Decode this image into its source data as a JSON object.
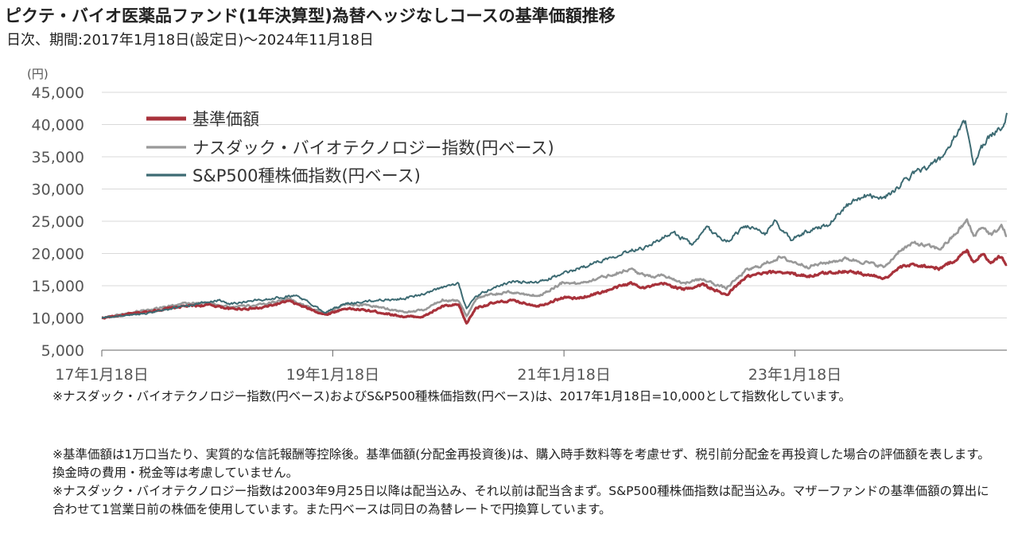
{
  "title": "ピクテ・バイオ医薬品ファンド(1年決算型)為替ヘッジなしコースの基準価額推移",
  "subtitle": "日次、期間:2017年1月18日(設定日)～2024年11月18日",
  "note_index": "※ナスダック・バイオテクノロジー指数(円ベース)およびS&P500種株価指数(円ベース)は、2017年1月18日=10,000として指数化しています。",
  "notes": [
    "※基準価額は1万口当たり、実質的な信託報酬等控除後。基準価額(分配金再投資後)は、購入時手数料等を考慮せず、税引前分配金を再投資した場合の評価額を表します。換金時の費用・税金等は考慮していません。",
    "※ナスダック・バイオテクノロジー指数は2003年9月25日以降は配当込み、それ以前は配当含まず。S&P500種株価指数は配当込み。マザーファンドの基準価額の算出に合わせて1営業日前の株価を使用しています。また円ベースは同日の為替レートで円換算しています。"
  ],
  "chart_data": {
    "type": "line",
    "unit_label": "(円)",
    "ylim": [
      5000,
      45000
    ],
    "yticks": [
      5000,
      10000,
      15000,
      20000,
      25000,
      30000,
      35000,
      40000,
      45000
    ],
    "ytick_labels": [
      "5,000",
      "10,000",
      "15,000",
      "20,000",
      "25,000",
      "30,000",
      "35,000",
      "40,000",
      "45,000"
    ],
    "xlim": [
      "2017-01-18",
      "2024-11-18"
    ],
    "xticks": [
      "2017-01-18",
      "2019-01-18",
      "2021-01-18",
      "2023-01-18"
    ],
    "xtick_labels": [
      "17年1月18日",
      "19年1月18日",
      "21年1月18日",
      "23年1月18日"
    ],
    "grid": true,
    "legend_position": "top-left",
    "series": [
      {
        "name": "基準価額",
        "color": "#a8323b",
        "points": [
          [
            "2017-01-18",
            10000
          ],
          [
            "2017-06-01",
            10900
          ],
          [
            "2017-10-01",
            11800
          ],
          [
            "2018-01-01",
            12000
          ],
          [
            "2018-03-01",
            11400
          ],
          [
            "2018-06-01",
            11500
          ],
          [
            "2018-09-01",
            12600
          ],
          [
            "2018-12-25",
            10500
          ],
          [
            "2019-03-01",
            11500
          ],
          [
            "2019-06-01",
            11000
          ],
          [
            "2019-09-01",
            10200
          ],
          [
            "2019-11-01",
            10200
          ],
          [
            "2019-12-31",
            11800
          ],
          [
            "2020-02-20",
            12000
          ],
          [
            "2020-03-16",
            9100
          ],
          [
            "2020-04-15",
            11600
          ],
          [
            "2020-06-01",
            12200
          ],
          [
            "2020-08-01",
            12700
          ],
          [
            "2020-10-30",
            11900
          ],
          [
            "2021-01-18",
            13200
          ],
          [
            "2021-03-01",
            13000
          ],
          [
            "2021-06-01",
            14200
          ],
          [
            "2021-08-15",
            15400
          ],
          [
            "2021-10-01",
            14700
          ],
          [
            "2021-12-01",
            15300
          ],
          [
            "2022-02-01",
            14400
          ],
          [
            "2022-04-01",
            15200
          ],
          [
            "2022-06-15",
            13500
          ],
          [
            "2022-08-15",
            16300
          ],
          [
            "2022-10-01",
            16800
          ],
          [
            "2022-12-01",
            17200
          ],
          [
            "2023-01-18",
            16800
          ],
          [
            "2023-03-01",
            16500
          ],
          [
            "2023-05-01",
            17000
          ],
          [
            "2023-07-01",
            17300
          ],
          [
            "2023-09-01",
            16700
          ],
          [
            "2023-10-31",
            16200
          ],
          [
            "2023-12-15",
            17800
          ],
          [
            "2024-02-01",
            18300
          ],
          [
            "2024-04-20",
            17700
          ],
          [
            "2024-06-01",
            18800
          ],
          [
            "2024-07-15",
            20400
          ],
          [
            "2024-08-05",
            18700
          ],
          [
            "2024-09-01",
            20000
          ],
          [
            "2024-10-01",
            18600
          ],
          [
            "2024-11-01",
            19700
          ],
          [
            "2024-11-18",
            18300
          ]
        ]
      },
      {
        "name": "ナスダック・バイオテクノロジー指数(円ベース)",
        "color": "#999999",
        "points": [
          [
            "2017-01-18",
            10000
          ],
          [
            "2017-06-01",
            11200
          ],
          [
            "2017-10-01",
            12200
          ],
          [
            "2018-01-01",
            12300
          ],
          [
            "2018-03-01",
            11700
          ],
          [
            "2018-06-01",
            12000
          ],
          [
            "2018-09-01",
            13000
          ],
          [
            "2018-12-25",
            10600
          ],
          [
            "2019-03-01",
            12200
          ],
          [
            "2019-06-01",
            11800
          ],
          [
            "2019-09-01",
            10900
          ],
          [
            "2019-11-01",
            11200
          ],
          [
            "2019-12-31",
            12800
          ],
          [
            "2020-02-20",
            12700
          ],
          [
            "2020-03-16",
            10300
          ],
          [
            "2020-04-15",
            13000
          ],
          [
            "2020-06-01",
            13600
          ],
          [
            "2020-08-01",
            14000
          ],
          [
            "2020-10-30",
            13400
          ],
          [
            "2021-01-18",
            15600
          ],
          [
            "2021-03-01",
            15300
          ],
          [
            "2021-06-01",
            16500
          ],
          [
            "2021-08-15",
            17600
          ],
          [
            "2021-10-01",
            16500
          ],
          [
            "2021-12-01",
            16600
          ],
          [
            "2022-02-01",
            15400
          ],
          [
            "2022-04-01",
            16000
          ],
          [
            "2022-06-15",
            14600
          ],
          [
            "2022-08-15",
            17300
          ],
          [
            "2022-10-01",
            18100
          ],
          [
            "2022-12-01",
            19400
          ],
          [
            "2023-01-18",
            18600
          ],
          [
            "2023-03-01",
            18000
          ],
          [
            "2023-05-01",
            18600
          ],
          [
            "2023-07-01",
            19200
          ],
          [
            "2023-09-01",
            18600
          ],
          [
            "2023-10-31",
            17900
          ],
          [
            "2023-12-15",
            20500
          ],
          [
            "2024-02-01",
            21600
          ],
          [
            "2024-04-20",
            20700
          ],
          [
            "2024-06-01",
            22600
          ],
          [
            "2024-07-15",
            25100
          ],
          [
            "2024-08-05",
            22700
          ],
          [
            "2024-09-01",
            24200
          ],
          [
            "2024-10-01",
            22800
          ],
          [
            "2024-11-01",
            24300
          ],
          [
            "2024-11-18",
            22700
          ]
        ]
      },
      {
        "name": "S&P500種株価指数(円ベース)",
        "color": "#3d6b73",
        "points": [
          [
            "2017-01-18",
            10000
          ],
          [
            "2017-06-01",
            10700
          ],
          [
            "2017-10-01",
            11800
          ],
          [
            "2018-01-25",
            12800
          ],
          [
            "2018-03-01",
            12200
          ],
          [
            "2018-06-01",
            12800
          ],
          [
            "2018-09-25",
            13500
          ],
          [
            "2018-12-25",
            10900
          ],
          [
            "2019-03-01",
            12200
          ],
          [
            "2019-06-01",
            12700
          ],
          [
            "2019-09-01",
            13000
          ],
          [
            "2019-11-01",
            13700
          ],
          [
            "2019-12-31",
            14700
          ],
          [
            "2020-02-20",
            15400
          ],
          [
            "2020-03-16",
            11400
          ],
          [
            "2020-04-15",
            13300
          ],
          [
            "2020-06-01",
            14500
          ],
          [
            "2020-08-01",
            15600
          ],
          [
            "2020-10-30",
            15500
          ],
          [
            "2021-01-18",
            16900
          ],
          [
            "2021-03-01",
            17600
          ],
          [
            "2021-06-01",
            19200
          ],
          [
            "2021-08-15",
            20500
          ],
          [
            "2021-10-01",
            21000
          ],
          [
            "2021-12-31",
            23200
          ],
          [
            "2022-03-01",
            21300
          ],
          [
            "2022-04-15",
            24000
          ],
          [
            "2022-06-15",
            21800
          ],
          [
            "2022-08-15",
            24300
          ],
          [
            "2022-10-15",
            23000
          ],
          [
            "2022-11-15",
            25000
          ],
          [
            "2023-01-05",
            22100
          ],
          [
            "2023-03-01",
            23500
          ],
          [
            "2023-05-01",
            24500
          ],
          [
            "2023-07-01",
            27500
          ],
          [
            "2023-09-01",
            29000
          ],
          [
            "2023-10-31",
            28700
          ],
          [
            "2023-12-15",
            30500
          ],
          [
            "2024-02-01",
            32500
          ],
          [
            "2024-04-20",
            34500
          ],
          [
            "2024-06-01",
            37500
          ],
          [
            "2024-07-10",
            40500
          ],
          [
            "2024-08-05",
            34000
          ],
          [
            "2024-09-01",
            36500
          ],
          [
            "2024-10-01",
            38500
          ],
          [
            "2024-11-01",
            39500
          ],
          [
            "2024-11-18",
            41800
          ]
        ]
      }
    ]
  }
}
